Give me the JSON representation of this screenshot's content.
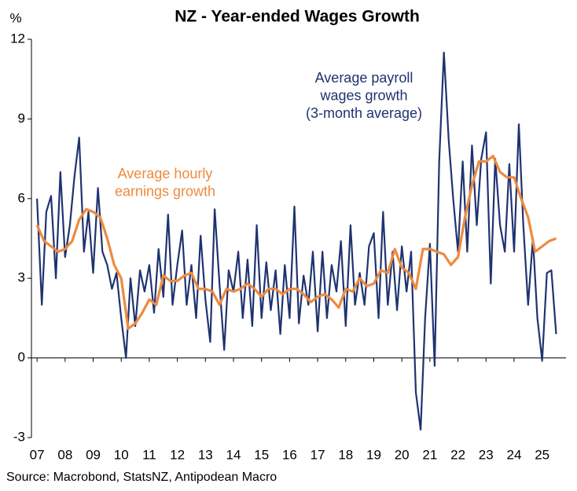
{
  "chart_data": {
    "type": "line",
    "title": "NZ - Year-ended Wages Growth",
    "y_label": "%",
    "source": "Source: Macrobond, StatsNZ, Antipodean Macro",
    "annotations": [
      {
        "lines": [
          "Average payroll",
          "wages growth",
          "(3-month average)"
        ],
        "color": "#1f3370"
      },
      {
        "lines": [
          "Average hourly",
          "earnings growth"
        ],
        "color": "#ee8a3e"
      }
    ],
    "xlim": [
      2006.8,
      2025.85
    ],
    "xticks": [
      {
        "value": 2007,
        "label": "07"
      },
      {
        "value": 2008,
        "label": "08"
      },
      {
        "value": 2009,
        "label": "09"
      },
      {
        "value": 2010,
        "label": "10"
      },
      {
        "value": 2011,
        "label": "11"
      },
      {
        "value": 2012,
        "label": "12"
      },
      {
        "value": 2013,
        "label": "13"
      },
      {
        "value": 2014,
        "label": "14"
      },
      {
        "value": 2015,
        "label": "15"
      },
      {
        "value": 2016,
        "label": "16"
      },
      {
        "value": 2017,
        "label": "17"
      },
      {
        "value": 2018,
        "label": "18"
      },
      {
        "value": 2019,
        "label": "19"
      },
      {
        "value": 2020,
        "label": "20"
      },
      {
        "value": 2021,
        "label": "21"
      },
      {
        "value": 2022,
        "label": "22"
      },
      {
        "value": 2023,
        "label": "23"
      },
      {
        "value": 2024,
        "label": "24"
      },
      {
        "value": 2025,
        "label": "25"
      }
    ],
    "ylim": [
      -3,
      12
    ],
    "yticks": [
      -3,
      0,
      3,
      6,
      9,
      12
    ],
    "series": [
      {
        "color": "#1f3370",
        "width": 2.2,
        "x": [
          2007.0,
          2007.17,
          2007.33,
          2007.5,
          2007.67,
          2007.83,
          2008.0,
          2008.17,
          2008.33,
          2008.5,
          2008.67,
          2008.83,
          2009.0,
          2009.17,
          2009.33,
          2009.5,
          2009.67,
          2009.83,
          2010.0,
          2010.17,
          2010.33,
          2010.5,
          2010.67,
          2010.83,
          2011.0,
          2011.17,
          2011.33,
          2011.5,
          2011.67,
          2011.83,
          2012.0,
          2012.17,
          2012.33,
          2012.5,
          2012.67,
          2012.83,
          2013.0,
          2013.17,
          2013.33,
          2013.5,
          2013.67,
          2013.83,
          2014.0,
          2014.17,
          2014.33,
          2014.5,
          2014.67,
          2014.83,
          2015.0,
          2015.17,
          2015.33,
          2015.5,
          2015.67,
          2015.83,
          2016.0,
          2016.17,
          2016.33,
          2016.5,
          2016.67,
          2016.83,
          2017.0,
          2017.17,
          2017.33,
          2017.5,
          2017.67,
          2017.83,
          2018.0,
          2018.17,
          2018.33,
          2018.5,
          2018.67,
          2018.83,
          2019.0,
          2019.17,
          2019.33,
          2019.5,
          2019.67,
          2019.83,
          2020.0,
          2020.17,
          2020.33,
          2020.5,
          2020.67,
          2020.83,
          2021.0,
          2021.17,
          2021.33,
          2021.5,
          2021.67,
          2021.83,
          2022.0,
          2022.17,
          2022.33,
          2022.5,
          2022.67,
          2022.83,
          2023.0,
          2023.17,
          2023.33,
          2023.5,
          2023.67,
          2023.83,
          2024.0,
          2024.17,
          2024.33,
          2024.5,
          2024.67,
          2024.83,
          2025.0,
          2025.17,
          2025.33,
          2025.5
        ],
        "values": [
          6.0,
          2.0,
          5.5,
          6.1,
          3.0,
          7.0,
          3.8,
          5.0,
          6.8,
          8.3,
          4.0,
          5.5,
          3.2,
          6.4,
          4.0,
          3.5,
          2.6,
          3.2,
          1.5,
          0.0,
          3.0,
          1.2,
          3.3,
          2.5,
          3.5,
          1.7,
          4.1,
          2.3,
          5.4,
          2.0,
          3.5,
          4.8,
          2.0,
          3.5,
          1.5,
          4.6,
          2.2,
          0.6,
          5.6,
          2.8,
          0.3,
          3.3,
          2.5,
          4.0,
          1.5,
          3.7,
          1.2,
          5.0,
          1.5,
          3.6,
          1.8,
          3.3,
          0.9,
          3.5,
          1.5,
          5.7,
          1.3,
          3.1,
          2.0,
          4.0,
          1.0,
          4.0,
          1.5,
          3.5,
          2.5,
          4.4,
          1.2,
          5.0,
          2.0,
          3.2,
          2.0,
          4.2,
          4.7,
          1.5,
          5.5,
          2.0,
          4.0,
          1.8,
          4.2,
          2.5,
          4.0,
          -1.3,
          -2.7,
          1.5,
          4.3,
          -0.3,
          7.4,
          11.5,
          8.2,
          6.0,
          4.0,
          7.4,
          4.0,
          8.0,
          5.0,
          7.5,
          8.5,
          2.8,
          7.5,
          5.0,
          4.0,
          7.3,
          4.0,
          8.8,
          5.0,
          2.0,
          4.5,
          1.5,
          -0.1,
          3.2,
          3.3,
          0.9
        ]
      },
      {
        "color": "#ee8a3e",
        "width": 3.2,
        "x": [
          2007.0,
          2007.25,
          2007.5,
          2007.75,
          2008.0,
          2008.25,
          2008.5,
          2008.75,
          2009.0,
          2009.25,
          2009.5,
          2009.75,
          2010.0,
          2010.25,
          2010.5,
          2010.75,
          2011.0,
          2011.25,
          2011.5,
          2011.75,
          2012.0,
          2012.25,
          2012.5,
          2012.75,
          2013.0,
          2013.25,
          2013.5,
          2013.75,
          2014.0,
          2014.25,
          2014.5,
          2014.75,
          2015.0,
          2015.25,
          2015.5,
          2015.75,
          2016.0,
          2016.25,
          2016.5,
          2016.75,
          2017.0,
          2017.25,
          2017.5,
          2017.75,
          2018.0,
          2018.25,
          2018.5,
          2018.75,
          2019.0,
          2019.25,
          2019.5,
          2019.75,
          2020.0,
          2020.25,
          2020.5,
          2020.75,
          2021.0,
          2021.25,
          2021.5,
          2021.75,
          2022.0,
          2022.25,
          2022.5,
          2022.75,
          2023.0,
          2023.25,
          2023.5,
          2023.75,
          2024.0,
          2024.25,
          2024.5,
          2024.75,
          2025.0,
          2025.25,
          2025.5
        ],
        "values": [
          5.0,
          4.4,
          4.2,
          4.0,
          4.1,
          4.4,
          5.2,
          5.6,
          5.5,
          5.3,
          4.5,
          3.5,
          3.0,
          1.1,
          1.3,
          1.7,
          2.2,
          2.0,
          3.1,
          2.9,
          2.9,
          3.1,
          3.2,
          2.6,
          2.6,
          2.5,
          2.0,
          2.6,
          2.5,
          2.6,
          2.8,
          2.6,
          2.3,
          2.6,
          2.6,
          2.4,
          2.6,
          2.6,
          2.4,
          2.1,
          2.3,
          2.4,
          2.2,
          1.9,
          2.6,
          2.5,
          3.0,
          2.7,
          2.8,
          3.3,
          3.2,
          4.1,
          3.4,
          3.2,
          2.6,
          4.1,
          4.1,
          4.0,
          3.9,
          3.5,
          3.8,
          5.3,
          6.5,
          7.4,
          7.4,
          7.6,
          7.0,
          6.8,
          6.8,
          6.0,
          5.3,
          4.0,
          4.2,
          4.4,
          4.5
        ]
      }
    ]
  }
}
